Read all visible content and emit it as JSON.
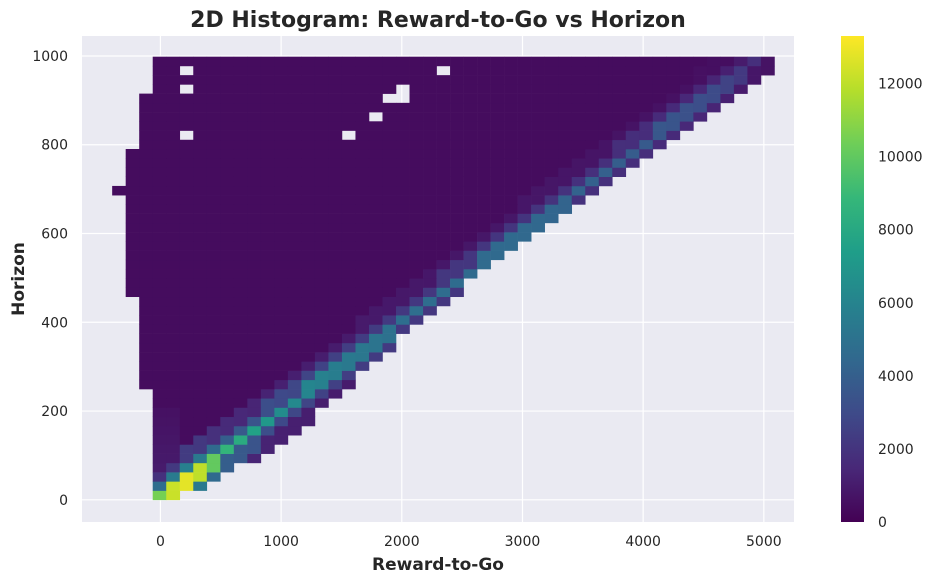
{
  "chart_data": {
    "type": "heatmap",
    "title": "2D Histogram: Reward-to-Go vs Horizon",
    "xlabel": "Reward-to-Go",
    "ylabel": "Horizon",
    "xlim": [
      -650,
      5250
    ],
    "ylim": [
      -50,
      1045
    ],
    "xticks": [
      0,
      1000,
      2000,
      3000,
      4000,
      5000
    ],
    "yticks": [
      0,
      200,
      400,
      600,
      800,
      1000
    ],
    "grid": true,
    "colormap": "viridis",
    "colorbar": {
      "min": 0,
      "max": 13300,
      "ticks": [
        0,
        2000,
        4000,
        6000,
        8000,
        10000,
        12000
      ]
    },
    "bins": {
      "x_start": -400,
      "x_width": 112,
      "y_start": 0,
      "y_width": 20.8,
      "nx": 49,
      "ny": 48
    },
    "distribution": {
      "ridge_slope_horizon_per_reward": 0.2,
      "ridge_values": [
        [
          0,
          10500
        ],
        [
          150,
          13000
        ],
        [
          300,
          12500
        ],
        [
          500,
          9000
        ],
        [
          1000,
          6500
        ],
        [
          1500,
          5500
        ],
        [
          2000,
          4800
        ],
        [
          3000,
          4500
        ],
        [
          4000,
          3800
        ],
        [
          4600,
          3000
        ],
        [
          5000,
          1500
        ]
      ],
      "background_value": 400,
      "near_zero_column_value": 1200,
      "lower_boundary": [
        [
          0,
          0
        ],
        [
          1000,
          130
        ],
        [
          2000,
          380
        ],
        [
          3000,
          600
        ],
        [
          4000,
          780
        ],
        [
          5000,
          960
        ]
      ],
      "upper_boundary_horizon": 1000,
      "left_boundary": [
        [
          0,
          -10
        ],
        [
          100,
          -10
        ],
        [
          300,
          -150
        ],
        [
          450,
          -230
        ],
        [
          700,
          -350
        ],
        [
          800,
          -230
        ],
        [
          1000,
          -50
        ]
      ],
      "holes": [
        [
          200,
          970
        ],
        [
          250,
          930
        ],
        [
          200,
          820
        ],
        [
          850,
          1000
        ],
        [
          1600,
          1000
        ],
        [
          1600,
          820
        ],
        [
          1800,
          860
        ],
        [
          1950,
          900
        ],
        [
          2050,
          920
        ],
        [
          2300,
          960
        ],
        [
          2350,
          1000
        ]
      ]
    }
  }
}
